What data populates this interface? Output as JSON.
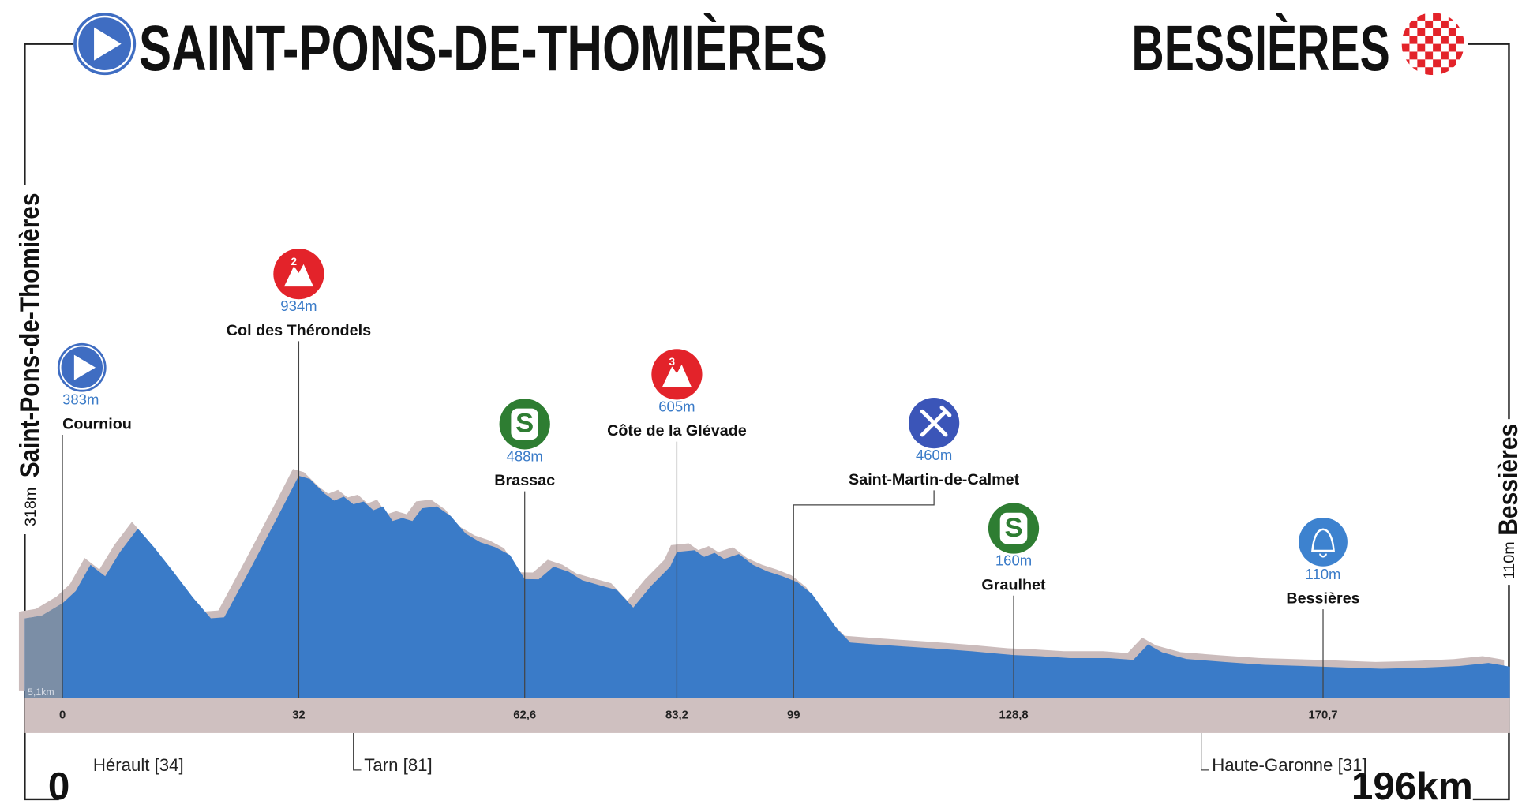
{
  "chart_data": {
    "type": "area",
    "title_start": "SAINT-PONS-DE-THOMIÈRES",
    "title_finish": "BESSIÈRES",
    "start": {
      "name": "Saint-Pons-de-Thomières",
      "elevation": 318,
      "elevation_label": "318m",
      "km": 0
    },
    "finish": {
      "name": "Bessières",
      "elevation": 110,
      "elevation_label": "110m",
      "distance": {
        "value": 196,
        "label": "196km"
      }
    },
    "neutral": {
      "value": 5.1,
      "label": "5,1km"
    },
    "xlim": [
      -5.1,
      196
    ],
    "ylim": [
      -25,
      2500
    ],
    "xticks": [
      0,
      32,
      {
        "value": 62.6,
        "label": "62,6"
      },
      {
        "value": 83.2,
        "label": "83,2"
      },
      99,
      {
        "value": 128.8,
        "label": "128,8"
      },
      {
        "value": 170.7,
        "label": "170,7"
      }
    ],
    "profile": {
      "color": "#3a7bc8",
      "shadow_color": "#cbbcbc",
      "neutral_color": "#7b8ea6",
      "x": [
        -5.1,
        -2.8,
        0,
        1.8,
        3.8,
        5.8,
        7.8,
        10.2,
        12.4,
        15.0,
        17.7,
        20.1,
        21.9,
        25.6,
        29.6,
        32,
        33.5,
        35.5,
        36.8,
        38.1,
        39.4,
        40.8,
        42.1,
        43.4,
        44.7,
        46.0,
        47.4,
        48.7,
        50.7,
        52.6,
        54.6,
        56.6,
        58.6,
        60.6,
        62.6,
        64.5,
        66.5,
        68.5,
        70.4,
        73.1,
        75.1,
        77.3,
        79.7,
        82.3,
        83.2,
        85.6,
        86.9,
        88.3,
        89.6,
        91.6,
        93.5,
        95.5,
        97.5,
        99.5,
        101.5,
        103.4,
        105.0,
        106.7,
        110.0,
        114.0,
        117.9,
        123.2,
        128.8,
        132.5,
        136.4,
        141.7,
        145.0,
        147.0,
        148.9,
        152.2,
        157.5,
        162.8,
        170.7,
        178.6,
        183.9,
        189.2,
        193.1,
        196
      ],
      "values": [
        318,
        330,
        383,
        437,
        550,
        500,
        605,
        706,
        626,
        521,
        407,
        319,
        323,
        542,
        785,
        934,
        920,
        857,
        827,
        844,
        811,
        823,
        785,
        802,
        739,
        752,
        739,
        794,
        802,
        760,
        685,
        647,
        626,
        592,
        488,
        487,
        542,
        521,
        483,
        458,
        441,
        365,
        458,
        542,
        605,
        613,
        584,
        601,
        575,
        596,
        550,
        521,
        500,
        475,
        424,
        340,
        269,
        214,
        206,
        197,
        189,
        176,
        160,
        155,
        147,
        147,
        139,
        206,
        172,
        143,
        130,
        118,
        110,
        101,
        105,
        113,
        126,
        110
      ]
    },
    "waypoints": [
      {
        "name": "Courniou",
        "elevation": 383,
        "elevation_label": "383m",
        "icon": "start"
      },
      {
        "name": "Col des Thérondels",
        "elevation": 934,
        "elevation_label": "934m",
        "icon": "climb",
        "icon_label": "2"
      },
      {
        "name": "Brassac",
        "elevation": 488,
        "elevation_label": "488m",
        "icon": "sprint",
        "icon_label": "S"
      },
      {
        "name": "Côte de la Glévade",
        "elevation": 605,
        "elevation_label": "605m",
        "icon": "climb",
        "icon_label": "3"
      },
      {
        "name": "Saint-Martin-de-Calmet",
        "elevation": 460,
        "elevation_label": "460m",
        "icon": "feed"
      },
      {
        "name": "Graulhet",
        "elevation": 160,
        "elevation_label": "160m",
        "icon": "sprint",
        "icon_label": "S"
      },
      {
        "name": "Bessières",
        "elevation": 110,
        "elevation_label": "110m",
        "icon": "bell"
      }
    ],
    "departments": [
      {
        "name": "Hérault [34]"
      },
      {
        "name": "Tarn [81]",
        "km": 39.4
      },
      {
        "name": "Haute-Garonne [31]",
        "km": 154.2
      }
    ]
  }
}
